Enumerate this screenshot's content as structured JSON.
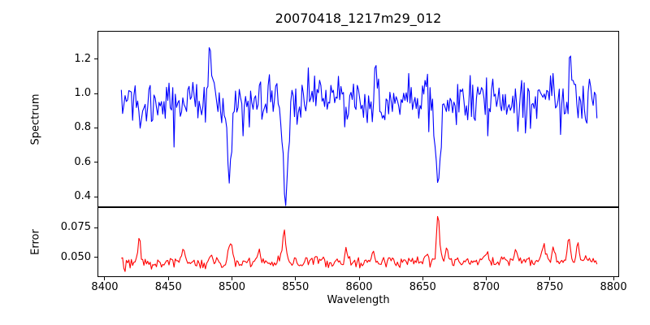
{
  "figure": {
    "title": "20070418_1217m29_012",
    "background_color": "#ffffff",
    "text_color": "#000000",
    "spine_color": "#000000"
  },
  "axes": {
    "xlabel": "Wavelength",
    "xlim": [
      8394.9,
      8803.8
    ],
    "grid": false,
    "legend": "none",
    "xticks": [
      {
        "value": 8400,
        "label": "8400"
      },
      {
        "value": 8450,
        "label": "8450"
      },
      {
        "value": 8500,
        "label": "8500"
      },
      {
        "value": 8550,
        "label": "8550"
      },
      {
        "value": 8600,
        "label": "8600"
      },
      {
        "value": 8650,
        "label": "8650"
      },
      {
        "value": 8700,
        "label": "8700"
      },
      {
        "value": 8750,
        "label": "8750"
      },
      {
        "value": 8800,
        "label": "8800"
      }
    ]
  },
  "chart_data": [
    {
      "type": "line",
      "panel": "spectrum",
      "ylabel": "Spectrum",
      "color": "#0000ff",
      "x_start": 8413,
      "x_end": 8787,
      "n_points": 380,
      "ylim": [
        0.344,
        1.359
      ],
      "yticks": [
        {
          "value": 0.4,
          "label": "0.4"
        },
        {
          "value": 0.6,
          "label": "0.6"
        },
        {
          "value": 0.8,
          "label": "0.8"
        },
        {
          "value": 1.0,
          "label": "1.0"
        },
        {
          "value": 1.2,
          "label": "1.2"
        }
      ],
      "continuum": 0.955,
      "noise_sigma": 0.075,
      "noise_seed": 20070418,
      "max_value_observed": 1.3,
      "min_value_observed": 0.37,
      "absorption_lines": [
        {
          "center": 8498.0,
          "depth": 0.42,
          "sigma": 1.6,
          "min_value": 0.54
        },
        {
          "center": 8542.1,
          "depth": 0.58,
          "sigma": 2.0,
          "min_value": 0.37
        },
        {
          "center": 8662.1,
          "depth": 0.49,
          "sigma": 1.9,
          "min_value": 0.47
        }
      ],
      "emission_spikes": [
        {
          "center": 8483,
          "amp": 0.33,
          "sigma": 1.2
        },
        {
          "center": 8613,
          "amp": 0.22,
          "sigma": 0.9
        },
        {
          "center": 8705,
          "amp": 0.2,
          "sigma": 0.9
        },
        {
          "center": 8766,
          "amp": 0.24,
          "sigma": 0.9
        }
      ]
    },
    {
      "type": "line",
      "panel": "error",
      "ylabel": "Error",
      "color": "#ff0000",
      "x_start": 8413,
      "x_end": 8787,
      "n_points": 380,
      "ylim": [
        0.0338,
        0.0919
      ],
      "yticks": [
        {
          "value": 0.05,
          "label": "0.050"
        },
        {
          "value": 0.075,
          "label": "0.075"
        }
      ],
      "baseline": 0.0448,
      "slope_per_unit": 6e-06,
      "noise_sigma": 0.0022,
      "noise_seed": 1217,
      "max_value_observed": 0.088,
      "peaks": [
        {
          "center": 8427,
          "amp": 0.024,
          "sigma": 1.0
        },
        {
          "center": 8462,
          "amp": 0.013,
          "sigma": 1.2
        },
        {
          "center": 8483,
          "amp": 0.007,
          "sigma": 1.5
        },
        {
          "center": 8499,
          "amp": 0.016,
          "sigma": 1.5
        },
        {
          "center": 8521,
          "amp": 0.011,
          "sigma": 1.5
        },
        {
          "center": 8541,
          "amp": 0.026,
          "sigma": 1.3
        },
        {
          "center": 8566,
          "amp": 0.007,
          "sigma": 1.5
        },
        {
          "center": 8590,
          "amp": 0.011,
          "sigma": 1.5
        },
        {
          "center": 8611,
          "amp": 0.007,
          "sigma": 1.5
        },
        {
          "center": 8652,
          "amp": 0.007,
          "sigma": 1.2
        },
        {
          "center": 8662,
          "amp": 0.041,
          "sigma": 1.1
        },
        {
          "center": 8669,
          "amp": 0.011,
          "sigma": 1.4
        },
        {
          "center": 8700,
          "amp": 0.009,
          "sigma": 1.5
        },
        {
          "center": 8723,
          "amp": 0.008,
          "sigma": 1.5
        },
        {
          "center": 8745,
          "amp": 0.014,
          "sigma": 1.3
        },
        {
          "center": 8753,
          "amp": 0.01,
          "sigma": 1.3
        },
        {
          "center": 8765,
          "amp": 0.018,
          "sigma": 1.2
        },
        {
          "center": 8772,
          "amp": 0.013,
          "sigma": 1.2
        }
      ]
    }
  ]
}
